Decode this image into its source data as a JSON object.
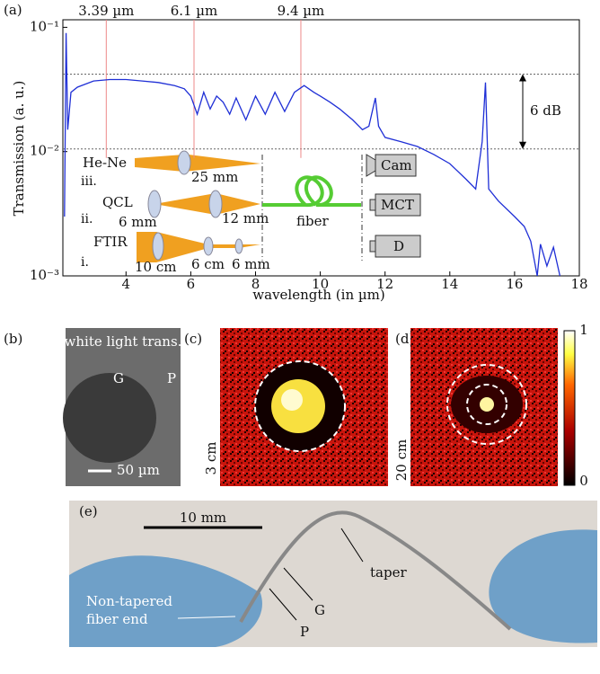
{
  "chart_data": {
    "type": "line",
    "panel_label": "(a)",
    "x_label": "wavelength (in µm)",
    "y_label": "Transmission (a. u.)",
    "log_y": true,
    "color": "#1f2fd6",
    "xlim": [
      2.05,
      18
    ],
    "xticks": [
      4,
      6,
      8,
      10,
      12,
      14,
      16,
      18
    ],
    "ylim": [
      0.001,
      0.115
    ],
    "yticks": [
      {
        "value": 0.001,
        "label": "10⁻³"
      },
      {
        "value": 0.01,
        "label": "10⁻²"
      },
      {
        "value": 0.1,
        "label": "10⁻¹"
      }
    ],
    "x": [
      2.1,
      2.15,
      2.2,
      2.3,
      2.5,
      3.0,
      3.5,
      4.0,
      4.5,
      5.0,
      5.5,
      5.8,
      6.0,
      6.2,
      6.4,
      6.6,
      6.8,
      7.0,
      7.2,
      7.4,
      7.7,
      8.0,
      8.3,
      8.6,
      8.9,
      9.2,
      9.5,
      9.8,
      10.0,
      10.3,
      10.6,
      11.0,
      11.3,
      11.5,
      11.7,
      11.8,
      12.0,
      12.5,
      13.0,
      13.5,
      14.0,
      14.5,
      14.8,
      15.0,
      15.1,
      15.2,
      15.5,
      16.0,
      16.3,
      16.5,
      16.7,
      16.8,
      17.0,
      17.2,
      17.4
    ],
    "values": [
      0.003,
      0.09,
      0.015,
      0.03,
      0.033,
      0.037,
      0.038,
      0.038,
      0.037,
      0.036,
      0.034,
      0.032,
      0.028,
      0.02,
      0.03,
      0.022,
      0.028,
      0.025,
      0.02,
      0.027,
      0.018,
      0.028,
      0.02,
      0.03,
      0.021,
      0.03,
      0.034,
      0.03,
      0.028,
      0.025,
      0.022,
      0.018,
      0.015,
      0.016,
      0.027,
      0.016,
      0.013,
      0.012,
      0.011,
      0.0095,
      0.008,
      0.006,
      0.005,
      0.012,
      0.036,
      0.005,
      0.004,
      0.003,
      0.0025,
      0.0019,
      0.001,
      0.0018,
      0.0012,
      0.0017,
      0.001
    ],
    "vlines": [
      {
        "value": 3.39,
        "label": "3.39 µm"
      },
      {
        "value": 6.1,
        "label": "6.1 µm"
      },
      {
        "value": 9.4,
        "label": "9.4 µm"
      }
    ],
    "hlines": [
      0.042,
      0.0105
    ],
    "hline_label": "6 dB",
    "schematic": {
      "hene": "He-Ne",
      "hene_num": "iii.",
      "hene_lens": "25 mm",
      "qcl": "QCL",
      "qcl_num": "ii.",
      "qcl_lens1": "6 mm",
      "qcl_lens2": "12 mm",
      "ftir": "FTIR",
      "ftir_num": "i.",
      "ftir_lens1": "10 cm",
      "ftir_lens2": "6 cm",
      "ftir_lens3": "6 mm",
      "fiber": "fiber",
      "cam": "Cam",
      "mct": "MCT",
      "d": "D"
    }
  },
  "panel_b": {
    "label": "(b)",
    "caption": "white light trans.",
    "g": "G",
    "p": "P",
    "scale": "50 µm"
  },
  "panel_c": {
    "label": "(c)",
    "distance": "3 cm"
  },
  "panel_d": {
    "label": "(d)",
    "distance": "20 cm",
    "colorbar_ticks": [
      0,
      1
    ]
  },
  "panel_e": {
    "label": "(e)",
    "scale": "10 mm",
    "taper": "taper",
    "g": "G",
    "p": "P",
    "end_line1": "Non-tapered",
    "end_line2": "fiber end"
  }
}
